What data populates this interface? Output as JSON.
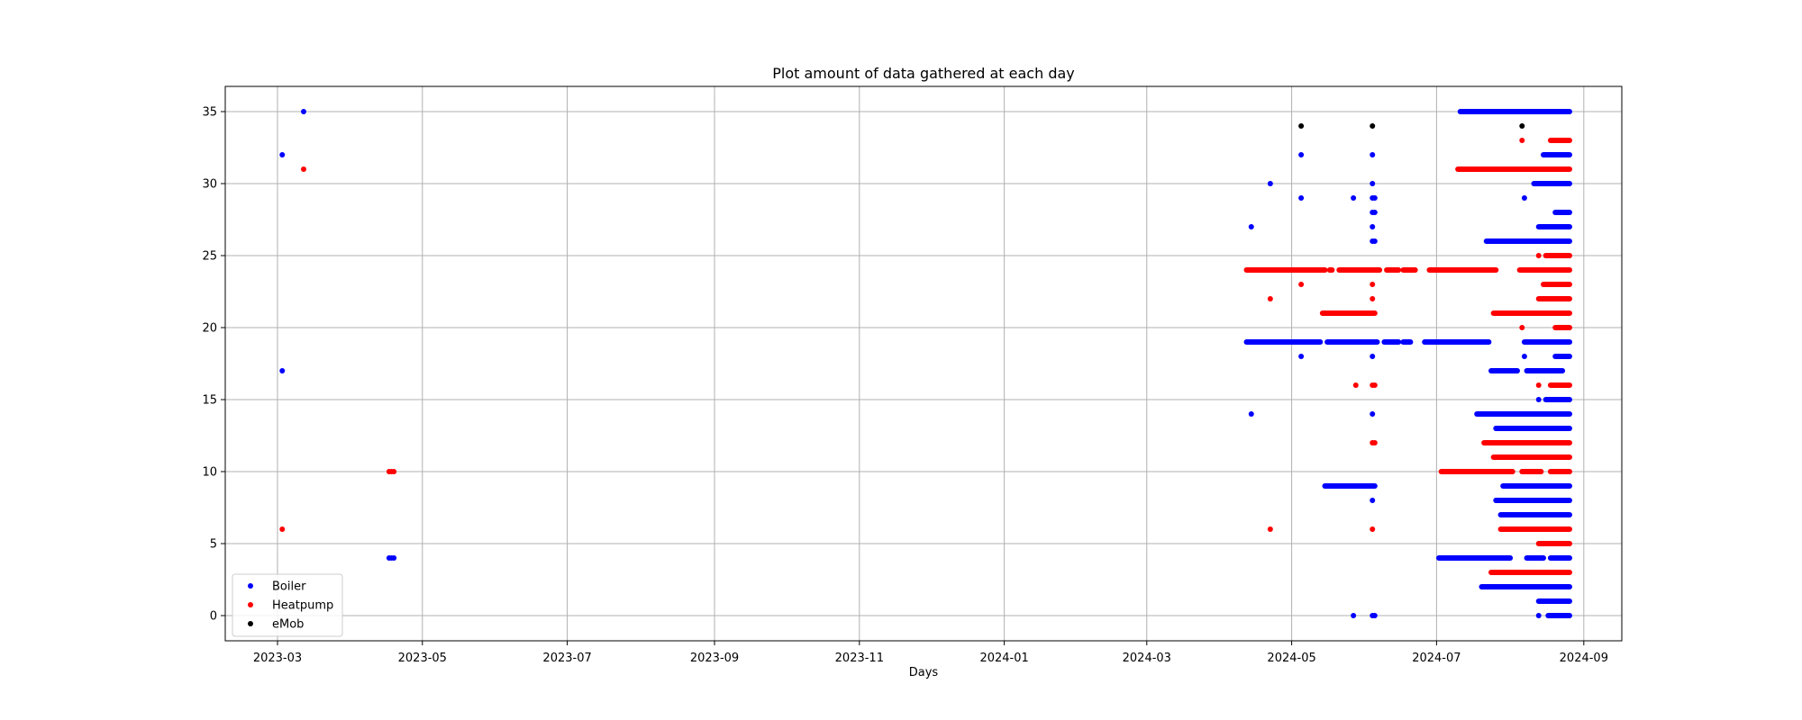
{
  "chart_data": {
    "type": "scatter",
    "title": "Plot amount of data gathered at each day",
    "xlabel": "Days",
    "ylabel": "",
    "x_type": "date",
    "xlim": [
      "2023-02-07",
      "2024-09-17"
    ],
    "ylim": [
      -1.75,
      36.75
    ],
    "x_ticks": [
      "2023-03-01",
      "2023-05-01",
      "2023-07-01",
      "2023-09-01",
      "2023-11-01",
      "2024-01-01",
      "2024-03-01",
      "2024-05-01",
      "2024-07-01",
      "2024-09-01"
    ],
    "x_tick_labels": [
      "2023-03",
      "2023-05",
      "2023-07",
      "2023-09",
      "2023-11",
      "2024-01",
      "2024-03",
      "2024-05",
      "2024-07",
      "2024-09"
    ],
    "y_ticks": [
      0,
      5,
      10,
      15,
      20,
      25,
      30,
      35
    ],
    "grid": true,
    "legend_position": "lower-left",
    "series": [
      {
        "name": "Boiler",
        "color": "#0000ff",
        "points": [
          [
            "2023-03-03",
            32
          ],
          [
            "2023-03-03",
            17
          ],
          [
            "2023-03-12",
            35
          ],
          [
            "2023-04-17",
            4
          ],
          [
            "2023-04-18",
            4
          ],
          [
            "2023-04-19",
            4
          ],
          [
            "2024-04-14",
            27
          ],
          [
            "2024-04-14",
            14
          ],
          [
            "2024-04-22",
            30
          ],
          [
            "2024-05-05",
            32
          ],
          [
            "2024-05-05",
            29
          ],
          [
            "2024-05-05",
            18
          ],
          [
            "2024-05-27",
            29
          ],
          [
            "2024-05-27",
            0
          ],
          [
            "2024-06-04",
            32
          ],
          [
            "2024-06-04",
            30
          ],
          [
            "2024-06-04",
            29
          ],
          [
            "2024-06-04",
            28
          ],
          [
            "2024-06-04",
            27
          ],
          [
            "2024-06-04",
            26
          ],
          [
            "2024-06-04",
            18
          ],
          [
            "2024-06-04",
            14
          ],
          [
            "2024-06-04",
            8
          ],
          [
            "2024-06-04",
            0
          ],
          [
            "2024-06-05",
            29
          ],
          [
            "2024-06-05",
            28
          ],
          [
            "2024-06-05",
            26
          ],
          [
            "2024-06-05",
            0
          ],
          [
            "2024-08-07",
            29
          ],
          [
            "2024-08-07",
            18
          ],
          [
            "2024-08-13",
            15
          ],
          [
            "2024-08-13",
            0
          ]
        ],
        "ranges": [
          [
            "2024-04-12",
            "2024-05-13",
            19
          ],
          [
            "2024-05-16",
            "2024-06-06",
            19
          ],
          [
            "2024-06-09",
            "2024-06-15",
            19
          ],
          [
            "2024-06-17",
            "2024-06-20",
            19
          ],
          [
            "2024-06-26",
            "2024-07-23",
            19
          ],
          [
            "2024-08-07",
            "2024-08-26",
            19
          ],
          [
            "2024-05-15",
            "2024-06-05",
            9
          ],
          [
            "2024-07-11",
            "2024-08-26",
            35
          ],
          [
            "2024-08-15",
            "2024-08-26",
            32
          ],
          [
            "2024-08-11",
            "2024-08-26",
            30
          ],
          [
            "2024-08-20",
            "2024-08-26",
            28
          ],
          [
            "2024-08-13",
            "2024-08-26",
            27
          ],
          [
            "2024-07-22",
            "2024-08-26",
            26
          ],
          [
            "2024-08-20",
            "2024-08-26",
            18
          ],
          [
            "2024-07-24",
            "2024-08-04",
            17
          ],
          [
            "2024-08-08",
            "2024-08-23",
            17
          ],
          [
            "2024-08-16",
            "2024-08-26",
            15
          ],
          [
            "2024-07-18",
            "2024-08-26",
            14
          ],
          [
            "2024-07-26",
            "2024-08-26",
            13
          ],
          [
            "2024-07-29",
            "2024-08-26",
            9
          ],
          [
            "2024-07-26",
            "2024-08-26",
            8
          ],
          [
            "2024-07-28",
            "2024-08-26",
            7
          ],
          [
            "2024-07-02",
            "2024-08-01",
            4
          ],
          [
            "2024-08-08",
            "2024-08-15",
            4
          ],
          [
            "2024-08-18",
            "2024-08-26",
            4
          ],
          [
            "2024-07-20",
            "2024-08-26",
            2
          ],
          [
            "2024-08-13",
            "2024-08-26",
            1
          ],
          [
            "2024-08-17",
            "2024-08-26",
            0
          ]
        ]
      },
      {
        "name": "Heatpump",
        "color": "#ff0000",
        "points": [
          [
            "2023-03-03",
            6
          ],
          [
            "2023-03-12",
            31
          ],
          [
            "2023-04-17",
            10
          ],
          [
            "2023-04-18",
            10
          ],
          [
            "2023-04-19",
            10
          ],
          [
            "2024-04-22",
            22
          ],
          [
            "2024-04-22",
            6
          ],
          [
            "2024-05-05",
            23
          ],
          [
            "2024-05-28",
            16
          ],
          [
            "2024-06-04",
            23
          ],
          [
            "2024-06-04",
            22
          ],
          [
            "2024-06-04",
            16
          ],
          [
            "2024-06-04",
            12
          ],
          [
            "2024-06-04",
            6
          ],
          [
            "2024-06-05",
            16
          ],
          [
            "2024-06-05",
            12
          ],
          [
            "2024-08-06",
            33
          ],
          [
            "2024-08-06",
            20
          ],
          [
            "2024-08-13",
            25
          ],
          [
            "2024-08-13",
            16
          ]
        ],
        "ranges": [
          [
            "2024-04-12",
            "2024-05-15",
            24
          ],
          [
            "2024-05-17",
            "2024-05-18",
            24
          ],
          [
            "2024-05-21",
            "2024-06-07",
            24
          ],
          [
            "2024-06-10",
            "2024-06-15",
            24
          ],
          [
            "2024-06-17",
            "2024-06-22",
            24
          ],
          [
            "2024-06-28",
            "2024-07-26",
            24
          ],
          [
            "2024-08-05",
            "2024-08-26",
            24
          ],
          [
            "2024-05-14",
            "2024-06-05",
            21
          ],
          [
            "2024-07-10",
            "2024-08-26",
            31
          ],
          [
            "2024-08-18",
            "2024-08-26",
            33
          ],
          [
            "2024-08-16",
            "2024-08-26",
            25
          ],
          [
            "2024-08-15",
            "2024-08-26",
            23
          ],
          [
            "2024-08-13",
            "2024-08-26",
            22
          ],
          [
            "2024-07-25",
            "2024-08-26",
            21
          ],
          [
            "2024-08-20",
            "2024-08-26",
            20
          ],
          [
            "2024-08-18",
            "2024-08-26",
            16
          ],
          [
            "2024-07-21",
            "2024-08-26",
            12
          ],
          [
            "2024-07-25",
            "2024-08-26",
            11
          ],
          [
            "2024-07-03",
            "2024-08-02",
            10
          ],
          [
            "2024-08-06",
            "2024-08-14",
            10
          ],
          [
            "2024-08-18",
            "2024-08-26",
            10
          ],
          [
            "2024-07-28",
            "2024-08-26",
            6
          ],
          [
            "2024-08-13",
            "2024-08-26",
            5
          ],
          [
            "2024-07-24",
            "2024-08-26",
            3
          ]
        ]
      },
      {
        "name": "eMob",
        "color": "#000000",
        "points": [
          [
            "2024-05-05",
            34
          ],
          [
            "2024-06-04",
            34
          ],
          [
            "2024-08-06",
            34
          ]
        ],
        "ranges": []
      }
    ]
  }
}
